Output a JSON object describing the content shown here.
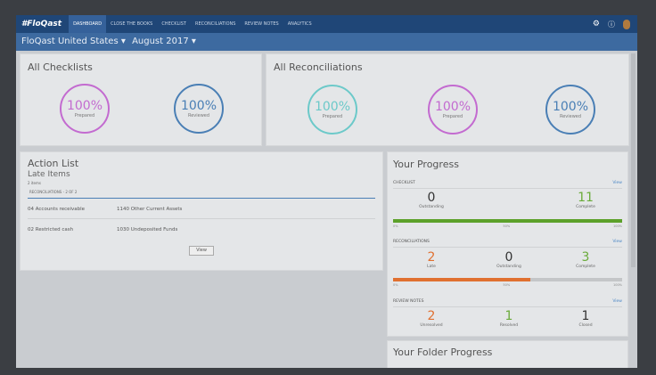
{
  "nav": {
    "logo": "#FloQast",
    "items": [
      "DASHBOARD",
      "CLOSE THE BOOKS",
      "CHECKLIST",
      "RECONCILIATIONS",
      "REVIEW NOTES",
      "ANALYTICS"
    ],
    "active": 0
  },
  "sub": {
    "entity": "FloQast United States ▾",
    "period": "August 2017 ▾"
  },
  "checklists": {
    "title": "All Checklists",
    "rings": [
      {
        "pct": "100%",
        "label": "Prepared",
        "color": "#c36bd0"
      },
      {
        "pct": "100%",
        "label": "Reviewed",
        "color": "#4a7fb5"
      }
    ]
  },
  "reconciliations": {
    "title": "All Reconciliations",
    "rings": [
      {
        "pct": "100%",
        "label": "Prepared",
        "color": "#6cc9c9"
      },
      {
        "pct": "100%",
        "label": "Prepared",
        "color": "#c36bd0"
      },
      {
        "pct": "100%",
        "label": "Reviewed",
        "color": "#4a7fb5"
      }
    ]
  },
  "action": {
    "title": "Action List",
    "subtitle": "Late Items",
    "count": "2 items",
    "section": "RECONCILIATIONS - 2 OF 2",
    "rows": [
      {
        "folder": "04 Accounts receivable",
        "account": "1140 Other Current Assets"
      },
      {
        "folder": "02 Restricted cash",
        "account": "1030 Undeposited Funds"
      }
    ],
    "view": "View"
  },
  "progress": {
    "title": "Your Progress",
    "view": "View",
    "checklist": {
      "label": "CHECKLIST",
      "stats": [
        {
          "n": "0",
          "l": "Outstanding"
        },
        {
          "n": "11",
          "l": "Complete"
        }
      ],
      "percent": 100,
      "color": "#5ca12a"
    },
    "recs": {
      "label": "RECONCILIATIONS",
      "stats": [
        {
          "n": "2",
          "l": "Late"
        },
        {
          "n": "0",
          "l": "Outstanding"
        },
        {
          "n": "3",
          "l": "Complete"
        }
      ],
      "percent": 60,
      "color": "#e07030"
    },
    "notes": {
      "label": "REVIEW NOTES",
      "stats": [
        {
          "n": "2",
          "l": "Unresolved"
        },
        {
          "n": "1",
          "l": "Resolved"
        },
        {
          "n": "1",
          "l": "Closed"
        }
      ]
    },
    "ticks": [
      "0%",
      "50%",
      "100%"
    ]
  },
  "folder": {
    "title": "Your Folder Progress"
  }
}
